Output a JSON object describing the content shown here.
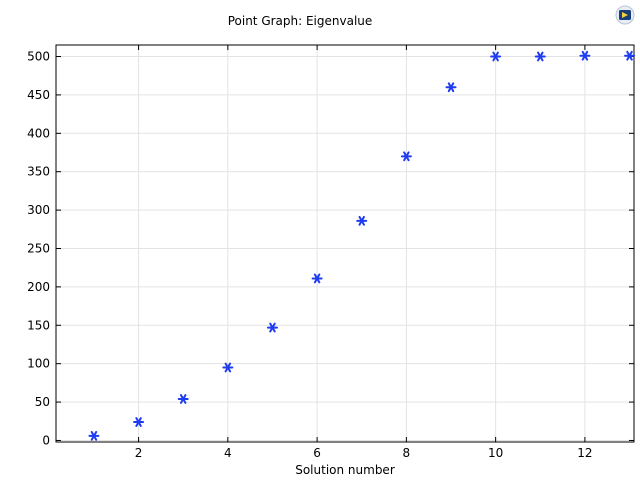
{
  "chart_data": {
    "type": "scatter",
    "title": "Point Graph: Eigenvalue",
    "xlabel": "Solution number",
    "ylabel": "",
    "xlim": [
      0.15,
      13.1
    ],
    "ylim": [
      -2,
      515
    ],
    "xticks": [
      2,
      4,
      6,
      8,
      10,
      12
    ],
    "yticks": [
      0,
      50,
      100,
      150,
      200,
      250,
      300,
      350,
      400,
      450,
      500
    ],
    "grid": true,
    "marker": "asterisk",
    "series": [
      {
        "color": "#1f3cf0",
        "x": [
          1,
          2,
          3,
          4,
          5,
          6,
          7,
          8,
          9,
          10,
          11,
          12,
          13
        ],
        "y": [
          6,
          24,
          54,
          95,
          147,
          211,
          286,
          370,
          460,
          500,
          500,
          501,
          501
        ]
      }
    ]
  },
  "logo": {
    "icon": "comsol-app-logo-icon"
  }
}
